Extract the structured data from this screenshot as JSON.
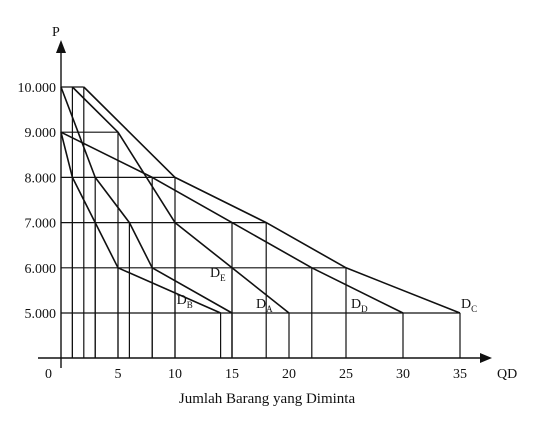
{
  "chart_data": {
    "type": "line",
    "ylabel": "P",
    "xlabel": "QD",
    "caption": "Jumlah Barang yang Diminta",
    "origin_label": "0",
    "x_ticks": [
      {
        "value": 5,
        "label": "5"
      },
      {
        "value": 10,
        "label": "10"
      },
      {
        "value": 15,
        "label": "15"
      },
      {
        "value": 20,
        "label": "20"
      },
      {
        "value": 25,
        "label": "25"
      },
      {
        "value": 30,
        "label": "30"
      },
      {
        "value": 35,
        "label": "35"
      }
    ],
    "y_ticks": [
      {
        "value": 5000,
        "label": "5.000"
      },
      {
        "value": 6000,
        "label": "6.000"
      },
      {
        "value": 7000,
        "label": "7.000"
      },
      {
        "value": 8000,
        "label": "8.000"
      },
      {
        "value": 9000,
        "label": "9.000"
      },
      {
        "value": 10000,
        "label": "10.000"
      }
    ],
    "xlim": [
      0,
      35
    ],
    "ylim": [
      4000,
      10000
    ],
    "grid": false,
    "series": [
      {
        "name": "D",
        "sub": "B",
        "points": [
          [
            0,
            9000
          ],
          [
            1,
            8000
          ],
          [
            3,
            7000
          ],
          [
            5,
            6000
          ],
          [
            14,
            5000
          ]
        ]
      },
      {
        "name": "D",
        "sub": "E",
        "points": [
          [
            0,
            10000
          ],
          [
            3,
            8000
          ],
          [
            6,
            7000
          ],
          [
            8,
            6000
          ],
          [
            15,
            5000
          ]
        ]
      },
      {
        "name": "D",
        "sub": "A",
        "points": [
          [
            1,
            10000
          ],
          [
            5,
            9000
          ],
          [
            10,
            7000
          ],
          [
            15,
            6000
          ],
          [
            20,
            5000
          ]
        ]
      },
      {
        "name": "D",
        "sub": "D",
        "points": [
          [
            0,
            9000
          ],
          [
            8,
            8000
          ],
          [
            15,
            7000
          ],
          [
            22,
            6000
          ],
          [
            30,
            5000
          ]
        ]
      },
      {
        "name": "D",
        "sub": "C",
        "points": [
          [
            2,
            10000
          ],
          [
            10,
            8000
          ],
          [
            18,
            7000
          ],
          [
            25,
            6000
          ],
          [
            35,
            5000
          ]
        ]
      }
    ]
  }
}
